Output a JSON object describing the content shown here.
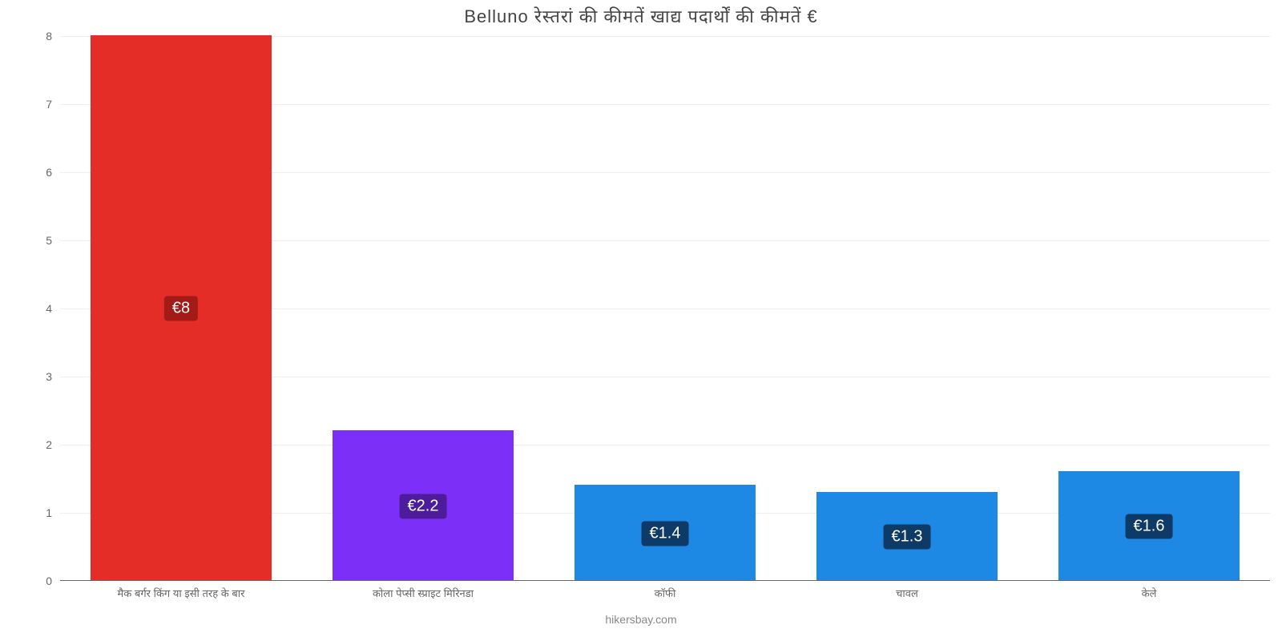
{
  "chart": {
    "type": "bar",
    "title": "Belluno रेस्तरां की कीमतें खाद्य पदार्थों की कीमतें €",
    "title_fontsize": 22,
    "title_color": "#444444",
    "caption": "hikersbay.com",
    "caption_color": "#888888",
    "background_color": "#ffffff",
    "grid_color": "#eeeeee",
    "axis_color": "#666666",
    "ylim": [
      0,
      8
    ],
    "ytick_step": 1,
    "yticks": [
      0,
      1,
      2,
      3,
      4,
      5,
      6,
      7,
      8
    ],
    "bar_width_ratio": 0.75,
    "value_label_prefix": "€",
    "categories": [
      "मैक बर्गर किंग या इसी तरह के बार",
      "कोला पेप्सी स्प्राइट मिरिनडा",
      "कॉफी",
      "चावल",
      "केले"
    ],
    "values": [
      8,
      2.2,
      1.4,
      1.3,
      1.6
    ],
    "display_values": [
      "€8",
      "€2.2",
      "€1.4",
      "€1.3",
      "€1.6"
    ],
    "bar_colors": [
      "#e52d27",
      "#7b2ff7",
      "#1e88e5",
      "#1e88e5",
      "#1e88e5"
    ],
    "label_bg_colors": [
      "#a31b17",
      "#4d1c9a",
      "#0d3a66",
      "#0d3a66",
      "#0d3a66"
    ],
    "label_text_color": "#ffffff",
    "label_fontsize": 20,
    "xtick_fontsize": 13,
    "ytick_fontsize": 14
  }
}
